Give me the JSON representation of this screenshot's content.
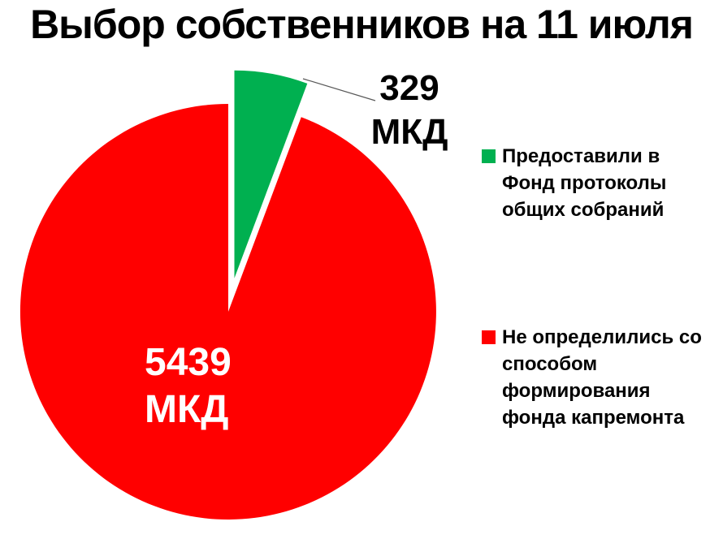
{
  "title": "Выбор собственников на 11 июля",
  "chart_data": {
    "type": "pie",
    "title": "Выбор собственников на 11 июля",
    "legend_position": "right",
    "start_angle_deg": 0,
    "slices": [
      {
        "id": "provided",
        "legend_label": "Предоставили в Фонд протоколы общих собраний",
        "value": 329,
        "value_label": "329",
        "unit_label": "МКД",
        "color": "#00B050",
        "exploded": true
      },
      {
        "id": "undecided",
        "legend_label": "Не определились со способом формирования фонда капремонта",
        "value": 5439,
        "value_label": "5439",
        "unit_label": "МКД",
        "color": "#FF0000",
        "exploded": false
      }
    ]
  },
  "legend": {
    "items": [
      {
        "swatch_color": "#00B050",
        "lines": [
          "Предоставили в",
          "Фонд протоколы",
          "общих собраний"
        ]
      },
      {
        "swatch_color": "#FF0000",
        "lines": [
          "Не определились со",
          "способом",
          "формирования",
          "фонда капремонта"
        ]
      }
    ]
  },
  "leader_line_color": "#595959"
}
